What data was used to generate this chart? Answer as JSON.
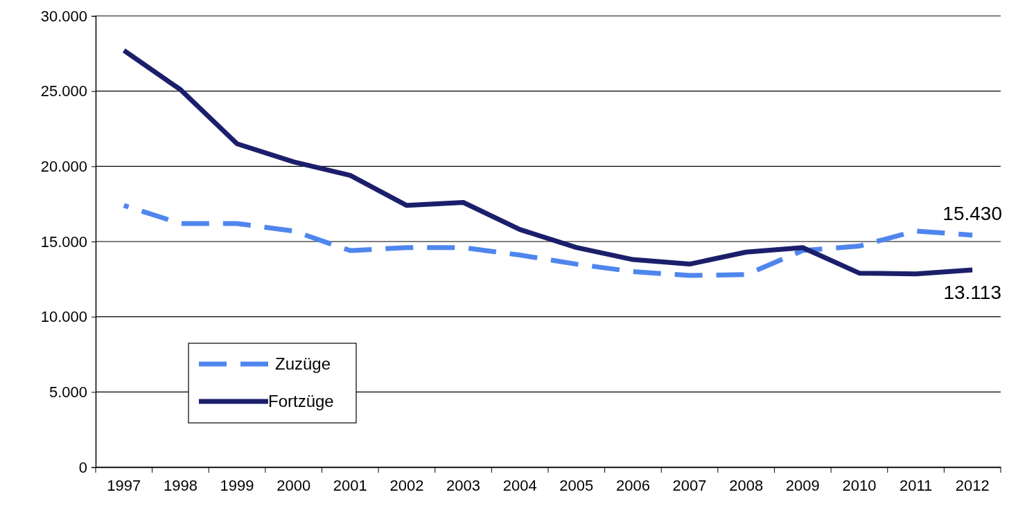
{
  "chart_data": {
    "type": "line",
    "categories": [
      "1997",
      "1998",
      "1999",
      "2000",
      "2001",
      "2002",
      "2003",
      "2004",
      "2005",
      "2006",
      "2007",
      "2008",
      "2009",
      "2010",
      "2011",
      "2012"
    ],
    "series": [
      {
        "name": "Zuzüge",
        "color": "#4f86ee",
        "line_style": "dashed",
        "values": [
          17400,
          16200,
          16200,
          15700,
          14400,
          14600,
          14600,
          14100,
          13500,
          13000,
          12750,
          12800,
          14400,
          14700,
          15700,
          15430
        ]
      },
      {
        "name": "Fortzüge",
        "color": "#1b1f6b",
        "line_style": "solid",
        "values": [
          27700,
          25100,
          21500,
          20300,
          19400,
          17400,
          17600,
          15800,
          14600,
          13800,
          13500,
          14300,
          14600,
          12900,
          12850,
          13113
        ]
      }
    ],
    "ylim": [
      0,
      30000
    ],
    "yticks": [
      {
        "value": 0,
        "label": "0"
      },
      {
        "value": 5000,
        "label": "5.000"
      },
      {
        "value": 10000,
        "label": "10.000"
      },
      {
        "value": 15000,
        "label": "15.000"
      },
      {
        "value": 20000,
        "label": "20.000"
      },
      {
        "value": 25000,
        "label": "25.000"
      },
      {
        "value": 30000,
        "label": "30.000"
      }
    ],
    "grid": "y",
    "legend": "bottom left",
    "marker": "none",
    "annotations": [
      {
        "text": "15.430",
        "x": "2012",
        "y": 15430
      },
      {
        "text": "13.113",
        "x": "2012",
        "y": 13113
      }
    ]
  }
}
